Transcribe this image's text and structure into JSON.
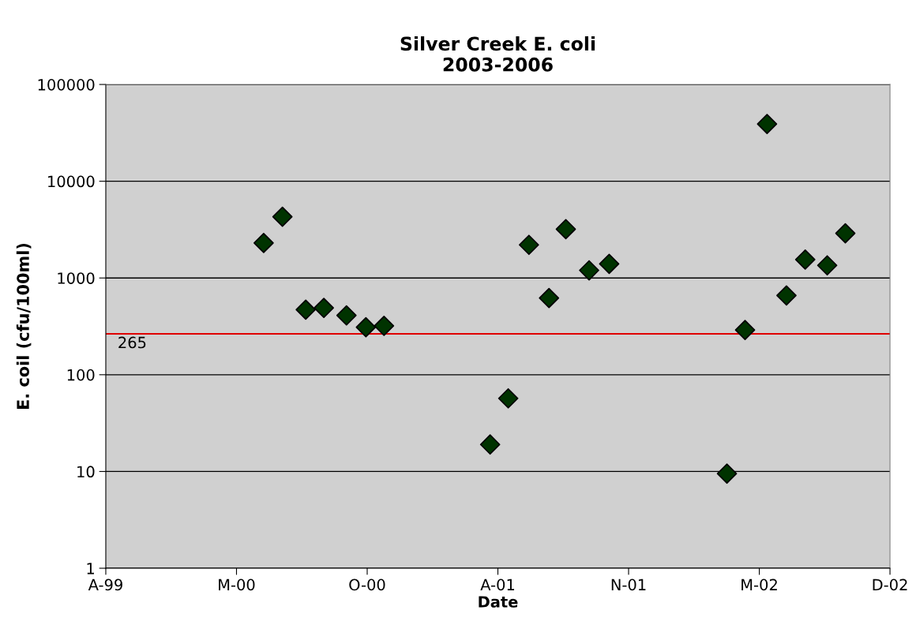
{
  "chart_data": {
    "type": "scatter",
    "title": "Silver Creek E. coli\n2003-2006",
    "xlabel": "Date",
    "ylabel": "E. coil (cfu/100ml)",
    "series": [
      {
        "color": "#003300",
        "x": [
          "2000-04-25",
          "2000-05-24",
          "2000-06-29",
          "2000-07-27",
          "2000-08-31",
          "2000-09-30",
          "2000-10-28",
          "2001-04-10",
          "2001-05-08",
          "2001-06-09",
          "2001-07-10",
          "2001-08-05",
          "2001-09-10",
          "2001-10-11",
          "2002-04-11",
          "2002-05-09",
          "2002-06-12",
          "2002-07-12",
          "2002-08-10",
          "2002-09-13",
          "2002-10-11"
        ],
        "values": [
          2300,
          4300,
          470,
          490,
          410,
          310,
          320,
          19,
          57,
          2200,
          620,
          3200,
          1200,
          1400,
          9.5,
          290,
          39000,
          660,
          1550,
          1350,
          2900
        ]
      }
    ],
    "marker": "diamond",
    "log": "y",
    "grid": "y",
    "xlim": [
      "1999-08-25",
      "2002-12-19"
    ],
    "xticks": [
      {
        "value": "1999-08-25",
        "label": "A-99"
      },
      {
        "value": "2000-03-14",
        "label": "M-00"
      },
      {
        "value": "2000-10-02",
        "label": "O-00"
      },
      {
        "value": "2001-04-22",
        "label": "A-01"
      },
      {
        "value": "2001-11-10",
        "label": "N-01"
      },
      {
        "value": "2002-05-31",
        "label": "M-02"
      },
      {
        "value": "2002-12-19",
        "label": "D-02"
      }
    ],
    "ylim": [
      1,
      100000
    ],
    "yticks": [
      1,
      10,
      100,
      1000,
      10000,
      100000
    ],
    "ref_lines": [
      {
        "axis": "y",
        "value": 265,
        "label": "265",
        "color": "#e00000"
      }
    ]
  }
}
